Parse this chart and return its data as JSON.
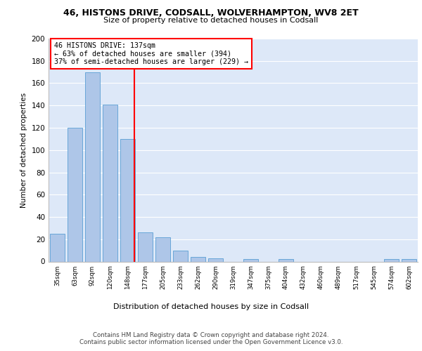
{
  "title1": "46, HISTONS DRIVE, CODSALL, WOLVERHAMPTON, WV8 2ET",
  "title2": "Size of property relative to detached houses in Codsall",
  "xlabel": "Distribution of detached houses by size in Codsall",
  "ylabel": "Number of detached properties",
  "categories": [
    "35sqm",
    "63sqm",
    "92sqm",
    "120sqm",
    "148sqm",
    "177sqm",
    "205sqm",
    "233sqm",
    "262sqm",
    "290sqm",
    "319sqm",
    "347sqm",
    "375sqm",
    "404sqm",
    "432sqm",
    "460sqm",
    "489sqm",
    "517sqm",
    "545sqm",
    "574sqm",
    "602sqm"
  ],
  "values": [
    25,
    120,
    170,
    141,
    110,
    26,
    22,
    10,
    4,
    3,
    0,
    2,
    0,
    2,
    0,
    0,
    0,
    0,
    0,
    2,
    2
  ],
  "bar_color": "#aec6e8",
  "bar_edgecolor": "#5a9fd4",
  "vline_x": 4.37,
  "vline_color": "red",
  "annotation_text": "46 HISTONS DRIVE: 137sqm\n← 63% of detached houses are smaller (394)\n37% of semi-detached houses are larger (229) →",
  "annotation_box_edgecolor": "red",
  "annotation_box_facecolor": "white",
  "ylim": [
    0,
    200
  ],
  "yticks": [
    0,
    20,
    40,
    60,
    80,
    100,
    120,
    140,
    160,
    180,
    200
  ],
  "footer": "Contains HM Land Registry data © Crown copyright and database right 2024.\nContains public sector information licensed under the Open Government Licence v3.0.",
  "bg_color": "#dde8f8",
  "grid_color": "#ffffff",
  "fig_facecolor": "#ffffff"
}
